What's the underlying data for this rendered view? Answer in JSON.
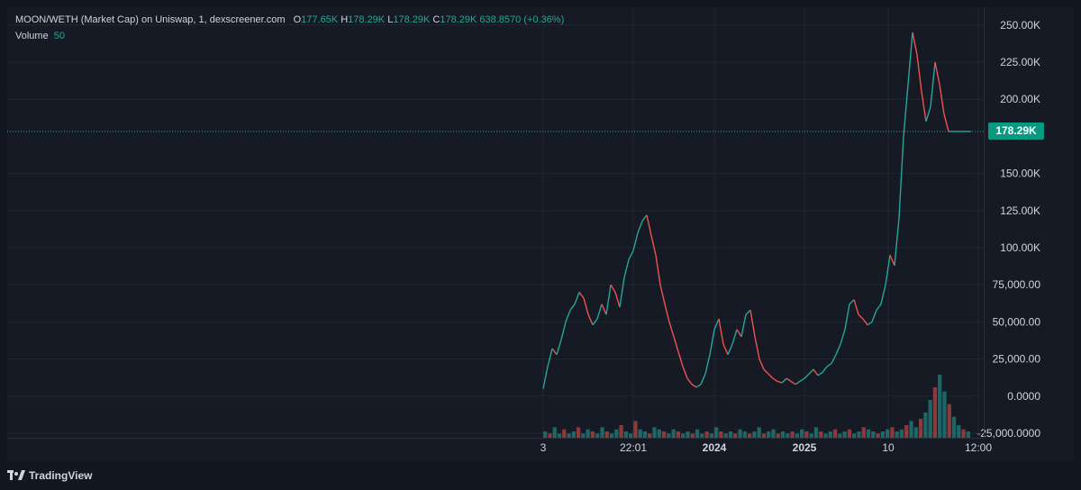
{
  "legend": {
    "symbol": "MOON/WETH (Market Cap) on Uniswap, 1, dexscreener.com",
    "open_label": "O",
    "open": "177.65K",
    "high_label": "H",
    "high": "178.29K",
    "low_label": "L",
    "low": "178.29K",
    "close_label": "C",
    "close": "178.29K",
    "change": "638.8570 (+0.36%)",
    "volume_label": "Volume",
    "volume_value": "50"
  },
  "price_tag": "178.29K",
  "branding": "TradingView",
  "colors": {
    "up": "#26a69a",
    "down": "#ef5350",
    "background": "#161a25",
    "grid": "#222631",
    "text": "#d1d4dc",
    "tag": "#089981"
  },
  "chart_data": {
    "type": "line",
    "title": "MOON/WETH (Market Cap) on Uniswap, 1, dexscreener.com",
    "yticks": [
      {
        "value": 250000,
        "label": "250.00K"
      },
      {
        "value": 225000,
        "label": "225.00K"
      },
      {
        "value": 200000,
        "label": "200.00K"
      },
      {
        "value": 150000,
        "label": "150.00K"
      },
      {
        "value": 125000,
        "label": "125.00K"
      },
      {
        "value": 100000,
        "label": "100.00K"
      },
      {
        "value": 75000,
        "label": "75,000.00"
      },
      {
        "value": 50000,
        "label": "50,000.00"
      },
      {
        "value": 25000,
        "label": "25,000.00"
      },
      {
        "value": 0,
        "label": "0.0000"
      },
      {
        "value": -25000,
        "label": "-25,000.0000"
      }
    ],
    "ylim": [
      -28000,
      262000
    ],
    "xticks": [
      {
        "bar": 0,
        "label": "3",
        "bold": false
      },
      {
        "bar": 100,
        "label": "22:01",
        "bold": false
      },
      {
        "bar": 190,
        "label": "2024",
        "bold": true
      },
      {
        "bar": 290,
        "label": "2025",
        "bold": true
      },
      {
        "bar": 383,
        "label": "10",
        "bold": false
      },
      {
        "bar": 483,
        "label": "12:00",
        "bold": false
      }
    ],
    "xlim": [
      0,
      483
    ],
    "last_price": 178290,
    "series": [
      {
        "x": [
          0,
          5,
          10,
          15,
          20,
          25,
          30,
          35,
          40,
          45,
          50,
          55,
          60,
          65,
          70,
          75,
          80,
          85,
          90,
          95,
          100,
          105,
          110,
          115,
          120,
          125,
          130,
          135,
          140,
          145,
          150,
          155,
          160,
          165,
          170,
          175,
          180,
          185,
          190,
          195,
          200,
          205,
          210,
          215,
          220,
          225,
          230,
          235,
          240,
          245,
          250,
          255,
          260,
          265,
          270,
          275,
          280,
          285,
          290,
          295,
          300,
          305,
          310,
          315,
          320,
          325,
          330,
          335,
          340,
          345,
          350,
          355,
          360,
          365,
          370,
          375,
          380,
          385,
          390,
          395,
          400,
          405,
          410,
          415,
          420,
          425,
          430,
          435,
          440,
          445,
          450,
          455,
          460,
          463,
          466,
          469,
          472,
          475
        ],
        "y": [
          5000,
          20000,
          32000,
          28000,
          38000,
          50000,
          58000,
          62000,
          70000,
          66000,
          55000,
          48000,
          52000,
          62000,
          55000,
          75000,
          70000,
          60000,
          80000,
          92000,
          98000,
          110000,
          118000,
          122000,
          108000,
          95000,
          75000,
          62000,
          50000,
          40000,
          30000,
          20000,
          12000,
          8000,
          6000,
          8000,
          15000,
          28000,
          45000,
          52000,
          35000,
          28000,
          35000,
          45000,
          40000,
          55000,
          58000,
          40000,
          25000,
          18000,
          15000,
          12000,
          10000,
          9000,
          12000,
          10000,
          8000,
          10000,
          12000,
          15000,
          18000,
          14000,
          16000,
          20000,
          22000,
          28000,
          35000,
          45000,
          62000,
          65000,
          55000,
          52000,
          48000,
          50000,
          58000,
          62000,
          75000,
          95000,
          88000,
          120000,
          175000,
          210000,
          245000,
          230000,
          205000,
          185000,
          195000,
          225000,
          210000,
          190000,
          178290,
          178290,
          178290,
          178290,
          178290,
          178290,
          178290,
          178290
        ]
      }
    ],
    "volume": [
      3,
      2,
      5,
      2,
      4,
      2,
      3,
      5,
      2,
      4,
      3,
      2,
      5,
      3,
      2,
      4,
      6,
      3,
      2,
      8,
      4,
      3,
      2,
      5,
      4,
      3,
      2,
      4,
      3,
      2,
      3,
      2,
      4,
      2,
      3,
      2,
      5,
      3,
      2,
      3,
      2,
      4,
      3,
      2,
      3,
      5,
      2,
      3,
      4,
      2,
      3,
      2,
      3,
      2,
      4,
      3,
      2,
      5,
      3,
      2,
      3,
      4,
      2,
      3,
      4,
      2,
      3,
      5,
      4,
      3,
      2,
      3,
      4,
      5,
      3,
      4,
      6,
      8,
      5,
      9,
      12,
      18,
      24,
      30,
      22,
      16,
      10,
      6,
      4,
      3
    ]
  }
}
